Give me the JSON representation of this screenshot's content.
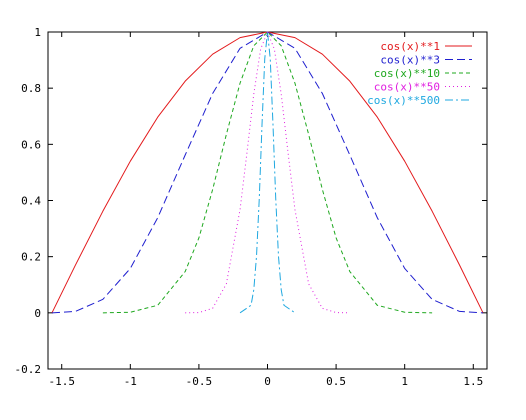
{
  "chart_data": {
    "type": "line",
    "title": "",
    "xlabel": "",
    "ylabel": "",
    "xlim": [
      -1.6,
      1.6
    ],
    "ylim": [
      -0.2,
      1.0
    ],
    "x_ticks": [
      -1.5,
      -1,
      -0.5,
      0,
      0.5,
      1,
      1.5
    ],
    "x_tick_labels": [
      "-1.5",
      "-1",
      "-0.5",
      "0",
      "0.5",
      "1",
      "1.5"
    ],
    "y_ticks": [
      -0.2,
      0,
      0.2,
      0.4,
      0.6,
      0.8,
      1
    ],
    "y_tick_labels": [
      "-0.2",
      "0",
      "0.2",
      "0.4",
      "0.6",
      "0.8",
      "1"
    ],
    "grid": false,
    "legend_position": "top-right",
    "series": [
      {
        "name": "cos(x)**1",
        "color": "#e31a1c",
        "dash": "solid",
        "x": [
          -1.5708,
          -1.4,
          -1.2,
          -1.0,
          -0.8,
          -0.6,
          -0.4,
          -0.2,
          0.0,
          0.2,
          0.4,
          0.6,
          0.8,
          1.0,
          1.2,
          1.4,
          1.5708
        ],
        "values": [
          0.0,
          0.17,
          0.362,
          0.54,
          0.697,
          0.825,
          0.921,
          0.98,
          1.0,
          0.98,
          0.921,
          0.825,
          0.697,
          0.54,
          0.362,
          0.17,
          0.0
        ]
      },
      {
        "name": "cos(x)**3",
        "color": "#1f1fcf",
        "dash": "long-dash",
        "x": [
          -1.5708,
          -1.4,
          -1.2,
          -1.0,
          -0.8,
          -0.6,
          -0.4,
          -0.2,
          0.0,
          0.2,
          0.4,
          0.6,
          0.8,
          1.0,
          1.2,
          1.4,
          1.5708
        ],
        "values": [
          0.0,
          0.005,
          0.048,
          0.158,
          0.339,
          0.562,
          0.781,
          0.942,
          1.0,
          0.942,
          0.781,
          0.562,
          0.339,
          0.158,
          0.048,
          0.005,
          0.0
        ]
      },
      {
        "name": "cos(x)**10",
        "color": "#1fa81f",
        "dash": "short-dash",
        "x": [
          -1.2,
          -1.0,
          -0.8,
          -0.6,
          -0.5,
          -0.4,
          -0.3,
          -0.2,
          -0.1,
          0.0,
          0.1,
          0.2,
          0.3,
          0.4,
          0.5,
          0.6,
          0.8,
          1.0,
          1.2
        ],
        "values": [
          0.0,
          0.002,
          0.027,
          0.147,
          0.267,
          0.439,
          0.635,
          0.818,
          0.951,
          1.0,
          0.951,
          0.818,
          0.635,
          0.439,
          0.267,
          0.147,
          0.027,
          0.002,
          0.0
        ]
      },
      {
        "name": "cos(x)**50",
        "color": "#e020e0",
        "dash": "dotted",
        "x": [
          -0.6,
          -0.5,
          -0.4,
          -0.3,
          -0.2,
          -0.15,
          -0.1,
          -0.05,
          0.0,
          0.05,
          0.1,
          0.15,
          0.2,
          0.3,
          0.4,
          0.5,
          0.6
        ],
        "values": [
          0.0,
          0.001,
          0.016,
          0.103,
          0.368,
          0.569,
          0.779,
          0.939,
          1.0,
          0.939,
          0.779,
          0.569,
          0.368,
          0.103,
          0.016,
          0.001,
          0.0
        ]
      },
      {
        "name": "cos(x)**500",
        "color": "#1fa8e0",
        "dash": "dash-dot",
        "x": [
          -0.2,
          -0.12,
          -0.1,
          -0.08,
          -0.06,
          -0.04,
          -0.02,
          0.0,
          0.02,
          0.04,
          0.06,
          0.08,
          0.1,
          0.12,
          0.2
        ],
        "values": [
          0.0,
          0.027,
          0.082,
          0.202,
          0.407,
          0.67,
          0.905,
          1.0,
          0.905,
          0.67,
          0.407,
          0.202,
          0.082,
          0.027,
          0.0
        ]
      }
    ]
  }
}
